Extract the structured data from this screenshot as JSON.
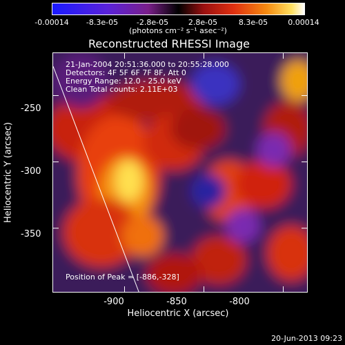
{
  "colorbar": {
    "labels": [
      "-0.00014",
      "-8.3e-05",
      "-2.8e-05",
      "2.8e-05",
      "8.3e-05",
      "0.00014"
    ],
    "units": "(photons cm⁻² s⁻¹ asec⁻²)",
    "colors": [
      "#1a1aff",
      "#7a1f8a",
      "#000000",
      "#e03010",
      "#f58a10",
      "#ffffff"
    ]
  },
  "chart_data": {
    "type": "heatmap",
    "title": "Reconstructed RHESSI Image",
    "xlabel": "Heliocentric X (arcsec)",
    "ylabel": "Heliocentric Y (arcsec)",
    "xlim": [
      -945,
      -785
    ],
    "ylim": [
      -398,
      -218
    ],
    "x_ticks": [
      -900,
      -850,
      -800
    ],
    "y_ticks": [
      -250,
      -300,
      -350
    ],
    "peak_position": [
      -886,
      -328
    ],
    "limb_line": {
      "x": [
        -945,
        -891
      ],
      "y": [
        -228,
        -398
      ]
    }
  },
  "annotations": {
    "time": "21-Jan-2004 20:51:36.000 to 20:55:28.000",
    "detectors": "Detectors: 4F 5F 6F 7F 8F, Att 0",
    "energy": "Energy Range: 12.0 - 25.0 keV",
    "clean": "Clean    Total counts: 2.11E+03",
    "peak": "Position of Peak = [-886,-328]"
  },
  "timestamp": "20-Jun-2013 09:23"
}
